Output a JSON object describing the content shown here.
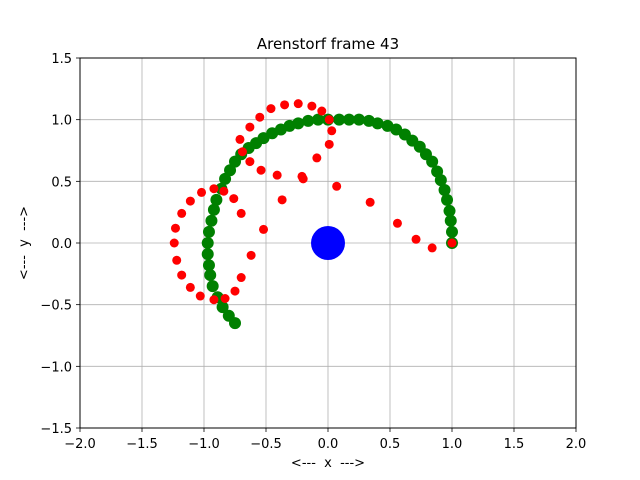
{
  "chart_data": {
    "type": "scatter",
    "title": "Arenstorf frame 43",
    "xlabel": "<---  x  --->",
    "ylabel": "<---  y  --->",
    "xlim": [
      -2.0,
      2.0
    ],
    "ylim": [
      -1.5,
      1.5
    ],
    "grid": true,
    "x_ticks": [
      -2.0,
      -1.5,
      -1.0,
      -0.5,
      0.0,
      0.5,
      1.0,
      1.5,
      2.0
    ],
    "y_ticks": [
      -1.5,
      -1.0,
      -0.5,
      0.0,
      0.5,
      1.0,
      1.5
    ],
    "x_tick_labels": [
      "−2.0",
      "−1.5",
      "−1.0",
      "−0.5",
      "0.0",
      "0.5",
      "1.0",
      "1.5",
      "2.0"
    ],
    "y_tick_labels": [
      "−1.5",
      "−1.0",
      "−0.5",
      "0.0",
      "0.5",
      "1.0",
      "1.5"
    ],
    "series": [
      {
        "color": "#008000",
        "marker": "large-circle",
        "points": [
          [
            1.0,
            0.0
          ],
          [
            1.0,
            0.09
          ],
          [
            0.99,
            0.18
          ],
          [
            0.98,
            0.26
          ],
          [
            0.96,
            0.35
          ],
          [
            0.94,
            0.43
          ],
          [
            0.91,
            0.51
          ],
          [
            0.88,
            0.58
          ],
          [
            0.84,
            0.66
          ],
          [
            0.79,
            0.72
          ],
          [
            0.74,
            0.78
          ],
          [
            0.68,
            0.83
          ],
          [
            0.62,
            0.88
          ],
          [
            0.55,
            0.92
          ],
          [
            0.48,
            0.95
          ],
          [
            0.4,
            0.97
          ],
          [
            0.33,
            0.99
          ],
          [
            0.25,
            1.0
          ],
          [
            0.17,
            1.0
          ],
          [
            0.09,
            1.0
          ],
          [
            0.0,
            1.0
          ],
          [
            -0.08,
            1.0
          ],
          [
            -0.16,
            0.99
          ],
          [
            -0.24,
            0.97
          ],
          [
            -0.31,
            0.95
          ],
          [
            -0.38,
            0.92
          ],
          [
            -0.45,
            0.89
          ],
          [
            -0.52,
            0.85
          ],
          [
            -0.58,
            0.81
          ],
          [
            -0.64,
            0.77
          ],
          [
            -0.7,
            0.72
          ],
          [
            -0.75,
            0.66
          ],
          [
            -0.79,
            0.59
          ],
          [
            -0.83,
            0.52
          ],
          [
            -0.86,
            0.44
          ],
          [
            -0.9,
            0.35
          ],
          [
            -0.92,
            0.27
          ],
          [
            -0.94,
            0.18
          ],
          [
            -0.96,
            0.09
          ],
          [
            -0.97,
            0.0
          ],
          [
            -0.97,
            -0.09
          ],
          [
            -0.96,
            -0.18
          ],
          [
            -0.95,
            -0.26
          ],
          [
            -0.93,
            -0.35
          ],
          [
            -0.89,
            -0.44
          ],
          [
            -0.85,
            -0.52
          ],
          [
            -0.8,
            -0.59
          ],
          [
            -0.75,
            -0.65
          ]
        ]
      },
      {
        "color": "#ff0000",
        "marker": "circle",
        "points": [
          [
            1.0,
            0.0
          ],
          [
            0.84,
            -0.04
          ],
          [
            0.71,
            0.03
          ],
          [
            0.56,
            0.16
          ],
          [
            0.34,
            0.33
          ],
          [
            0.07,
            0.46
          ],
          [
            -0.2,
            0.52
          ],
          [
            -0.21,
            0.54
          ],
          [
            -0.41,
            0.55
          ],
          [
            -0.54,
            0.59
          ],
          [
            -0.63,
            0.66
          ],
          [
            -0.69,
            0.74
          ],
          [
            -0.71,
            0.84
          ],
          [
            -0.63,
            0.94
          ],
          [
            -0.55,
            1.02
          ],
          [
            -0.46,
            1.09
          ],
          [
            -0.35,
            1.12
          ],
          [
            -0.24,
            1.13
          ],
          [
            -0.13,
            1.11
          ],
          [
            -0.05,
            1.07
          ],
          [
            0.01,
            1.0
          ],
          [
            0.03,
            0.91
          ],
          [
            0.01,
            0.8
          ],
          [
            -0.09,
            0.69
          ],
          [
            -0.37,
            0.35
          ],
          [
            -0.52,
            0.11
          ],
          [
            -0.62,
            -0.1
          ],
          [
            -0.7,
            -0.28
          ],
          [
            -0.75,
            -0.39
          ],
          [
            -0.83,
            -0.45
          ],
          [
            -0.92,
            -0.46
          ],
          [
            -1.03,
            -0.43
          ],
          [
            -1.11,
            -0.36
          ],
          [
            -1.18,
            -0.26
          ],
          [
            -1.22,
            -0.14
          ],
          [
            -1.24,
            0.0
          ],
          [
            -1.23,
            0.12
          ],
          [
            -1.18,
            0.24
          ],
          [
            -1.11,
            0.34
          ],
          [
            -1.02,
            0.41
          ],
          [
            -0.92,
            0.44
          ],
          [
            -0.84,
            0.42
          ],
          [
            -0.76,
            0.36
          ],
          [
            -0.7,
            0.24
          ]
        ]
      },
      {
        "color": "#0000ff",
        "marker": "body",
        "points": [
          [
            0.0,
            0.0
          ]
        ]
      }
    ]
  }
}
